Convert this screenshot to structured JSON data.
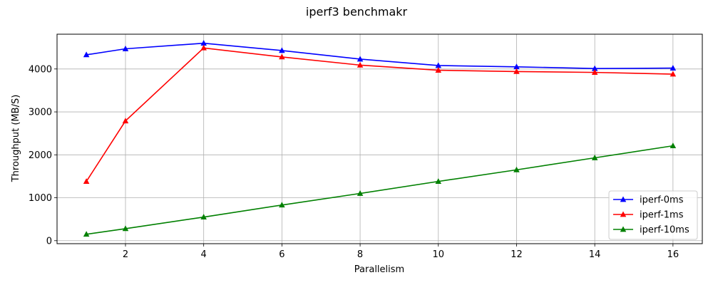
{
  "chart_data": {
    "type": "line",
    "title": "iperf3 benchmakr",
    "xlabel": "Parallelism",
    "ylabel": "Throughput (MB/S)",
    "x": [
      1,
      2,
      4,
      6,
      8,
      10,
      12,
      14,
      16
    ],
    "xlim": [
      0.25,
      16.75
    ],
    "ylim": [
      -70,
      4810
    ],
    "xticks": [
      2,
      4,
      6,
      8,
      10,
      12,
      14,
      16
    ],
    "yticks": [
      0,
      1000,
      2000,
      3000,
      4000
    ],
    "grid": true,
    "legend_position": "bottom-right",
    "marker": "triangle-up",
    "series": [
      {
        "name": "iperf-0ms",
        "color": "#0000ff",
        "values": [
          4330,
          4470,
          4600,
          4430,
          4230,
          4080,
          4050,
          4010,
          4020
        ]
      },
      {
        "name": "iperf-1ms",
        "color": "#ff0000",
        "values": [
          1380,
          2790,
          4490,
          4280,
          4090,
          3970,
          3940,
          3920,
          3880
        ]
      },
      {
        "name": "iperf-10ms",
        "color": "#008000",
        "values": [
          150,
          280,
          550,
          830,
          1100,
          1380,
          1650,
          1930,
          2210
        ]
      }
    ]
  }
}
